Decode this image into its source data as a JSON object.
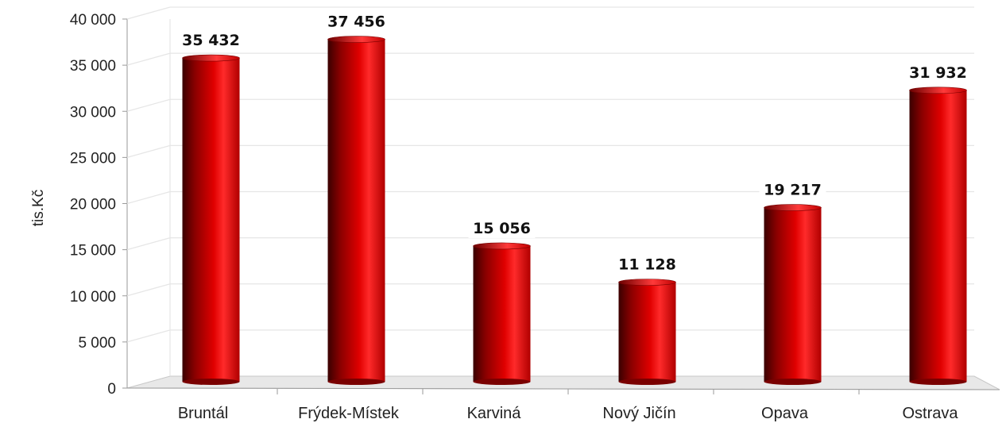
{
  "chart_data": {
    "type": "bar",
    "title": "",
    "xlabel": "",
    "ylabel": "tis.Kč",
    "ylim": [
      0,
      40000
    ],
    "yticks": [
      0,
      5000,
      10000,
      15000,
      20000,
      25000,
      30000,
      35000,
      40000
    ],
    "ytick_labels": [
      "0",
      "5 000",
      "10 000",
      "15 000",
      "20 000",
      "25 000",
      "30 000",
      "35 000",
      "40 000"
    ],
    "categories": [
      "Bruntál",
      "Frýdek-Místek",
      "Karviná",
      "Nový Jičín",
      "Opava",
      "Ostrava"
    ],
    "values": [
      35432,
      37456,
      15056,
      11128,
      19217,
      31932
    ],
    "value_labels": [
      "35 432",
      "37 456",
      "15 056",
      "11 128",
      "19 217",
      "31 932"
    ],
    "grid": true,
    "legend": "none",
    "colors": {
      "bar": "#c40000",
      "bar_dark": "#4a0000",
      "bar_light": "#ff3030",
      "grid": "#e6e6e6",
      "floor": "#e8e8e8"
    }
  }
}
